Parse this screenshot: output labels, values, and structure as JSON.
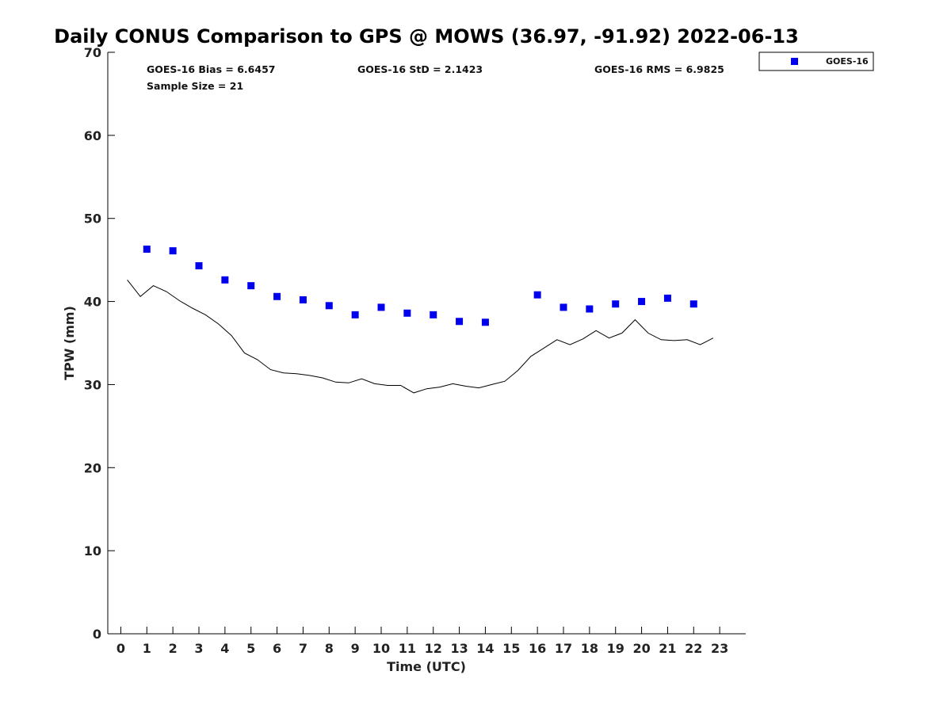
{
  "chart_data": {
    "type": "scatter",
    "title": "Daily CONUS Comparison to GPS @ MOWS (36.97, -91.92) 2022-06-13",
    "xlabel": "Time (UTC)",
    "ylabel": "TPW (mm)",
    "xlim": [
      -0.5,
      24.0
    ],
    "ylim": [
      0,
      70
    ],
    "xticks": [
      "0",
      "1",
      "2",
      "3",
      "4",
      "5",
      "6",
      "7",
      "8",
      "9",
      "10",
      "11",
      "12",
      "13",
      "14",
      "15",
      "16",
      "17",
      "18",
      "19",
      "20",
      "21",
      "22",
      "23"
    ],
    "yticks": [
      "0",
      "10",
      "20",
      "30",
      "40",
      "50",
      "60",
      "70"
    ],
    "grid": false,
    "legend_position": "top-right (outside plot)",
    "stats": {
      "bias": "GOES-16 Bias = 6.6457",
      "std": "GOES-16 StD = 2.1423",
      "rms": "GOES-16 RMS = 6.9825",
      "sample": "Sample Size = 21"
    },
    "series": [
      {
        "name": "GOES-16",
        "kind": "markers",
        "color": "#0000ee",
        "x": [
          1,
          2,
          3,
          4,
          5,
          6,
          7,
          8,
          9,
          10,
          11,
          12,
          13,
          14,
          16,
          17,
          18,
          19,
          20,
          21,
          22
        ],
        "y": [
          46.3,
          46.1,
          44.3,
          42.6,
          41.9,
          40.6,
          40.2,
          39.5,
          38.4,
          39.3,
          38.6,
          38.4,
          37.6,
          37.5,
          40.8,
          39.3,
          39.1,
          39.7,
          40.0,
          40.4,
          39.7
        ]
      },
      {
        "kind": "line",
        "color": "#000000",
        "x": [
          0.25,
          0.75,
          1.25,
          1.75,
          2.25,
          2.75,
          3.25,
          3.75,
          4.25,
          4.75,
          5.25,
          5.75,
          6.25,
          6.75,
          7.25,
          7.75,
          8.25,
          8.75,
          9.25,
          9.75,
          10.25,
          10.75,
          11.25,
          11.75,
          12.25,
          12.75,
          13.25,
          13.75,
          14.25,
          14.75,
          15.25,
          15.75,
          16.25,
          16.75,
          17.25,
          17.75,
          18.25,
          18.75,
          19.25,
          19.75,
          20.25,
          20.75,
          21.25,
          21.75,
          22.25,
          22.75
        ],
        "y": [
          42.6,
          40.6,
          41.9,
          41.2,
          40.1,
          39.2,
          38.4,
          37.3,
          35.9,
          33.8,
          33.0,
          31.8,
          31.4,
          31.3,
          31.1,
          30.8,
          30.3,
          30.2,
          30.7,
          30.1,
          29.9,
          29.9,
          29.0,
          29.5,
          29.7,
          30.1,
          29.8,
          29.6,
          30.0,
          30.4,
          31.7,
          33.4,
          34.4,
          35.4,
          34.8,
          35.5,
          36.5,
          35.6,
          36.2,
          37.8,
          36.2,
          35.4,
          35.3,
          35.4,
          34.8,
          35.6
        ]
      }
    ]
  }
}
